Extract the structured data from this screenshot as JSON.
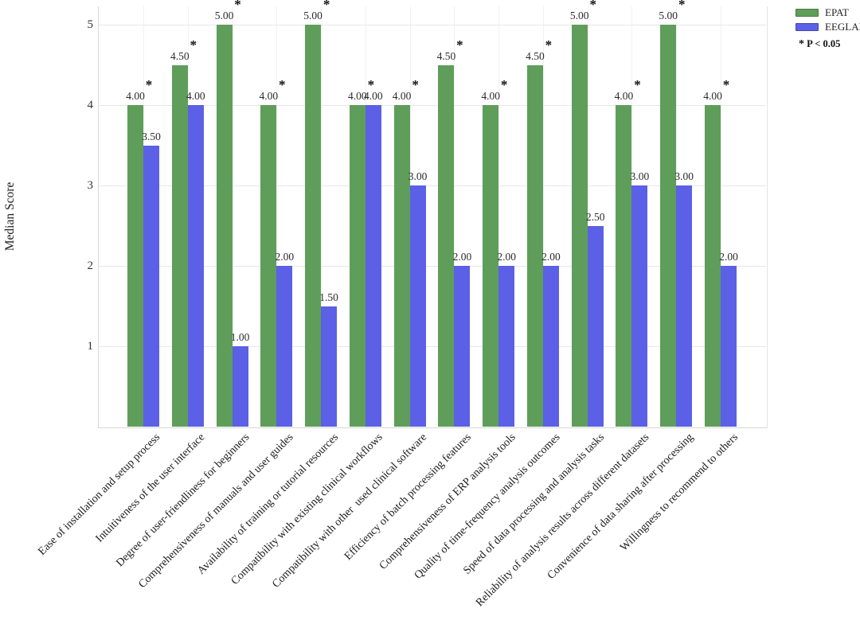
{
  "figure": {
    "background_color": "#ffffff",
    "grid_color": "#e7e7e7"
  },
  "legend": {
    "items": [
      {
        "label": "EPAT",
        "color": "#5f9e5a"
      },
      {
        "label": "EEGLAB",
        "color": "#5b60e6"
      }
    ],
    "note_marker": "*",
    "note_text": "P < 0.05"
  },
  "chart_data": {
    "type": "bar",
    "title": "",
    "xlabel": "",
    "ylabel": "Median Score",
    "ylim": [
      0,
      5.2
    ],
    "yticks": [
      1,
      2,
      3,
      4,
      5
    ],
    "grid": true,
    "legend_position": "upper right, outside plot",
    "value_label_decimals": 2,
    "categories": [
      "Ease of installation and setup process",
      "Intuitiveness of the user interface",
      "Degree of user-friendliness for beginners",
      "Comprehensiveness of manuals and user guides",
      "Availability of training or tutorial resources",
      "Compatibility with existing clinical workflows",
      "Compatibility with other  used clinical software",
      "Efficiency of batch processing features",
      "Comprehensiveness of ERP analysis tools",
      "Quality of time-frequency analysis outcomes",
      "Speed of data processing and analysis tasks",
      "Reliability of analysis results across different datasets",
      "Convenience of data sharing after processing",
      "Willingness to recommend to others"
    ],
    "series": [
      {
        "name": "EPAT",
        "color": "#5f9e5a",
        "values": [
          4.0,
          4.5,
          5.0,
          4.0,
          5.0,
          4.0,
          4.0,
          4.5,
          4.0,
          4.5,
          5.0,
          4.0,
          5.0,
          4.0
        ]
      },
      {
        "name": "EEGLAB",
        "color": "#5b60e6",
        "values": [
          3.5,
          4.0,
          1.0,
          2.0,
          1.5,
          4.0,
          3.0,
          2.0,
          2.0,
          2.0,
          2.5,
          3.0,
          3.0,
          2.0
        ]
      }
    ],
    "significance_marker": "*",
    "significant": [
      true,
      true,
      true,
      true,
      true,
      true,
      true,
      true,
      true,
      true,
      true,
      true,
      true,
      true
    ]
  }
}
